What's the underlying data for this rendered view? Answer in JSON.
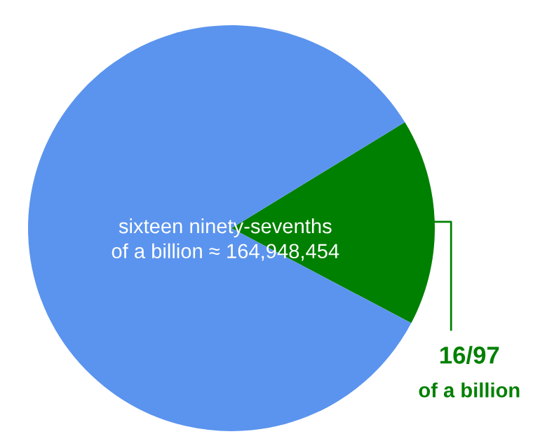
{
  "chart_data": {
    "type": "pie",
    "categories": [
      "16/97\nof a billion",
      null
    ],
    "values": [
      16.49,
      83.51
    ],
    "colors": [
      "#008000",
      "#5b94ee"
    ],
    "annotations": [
      "sixteen ninety-sevenths\nof a billion ≈ 164,948,454"
    ],
    "legend": false
  }
}
